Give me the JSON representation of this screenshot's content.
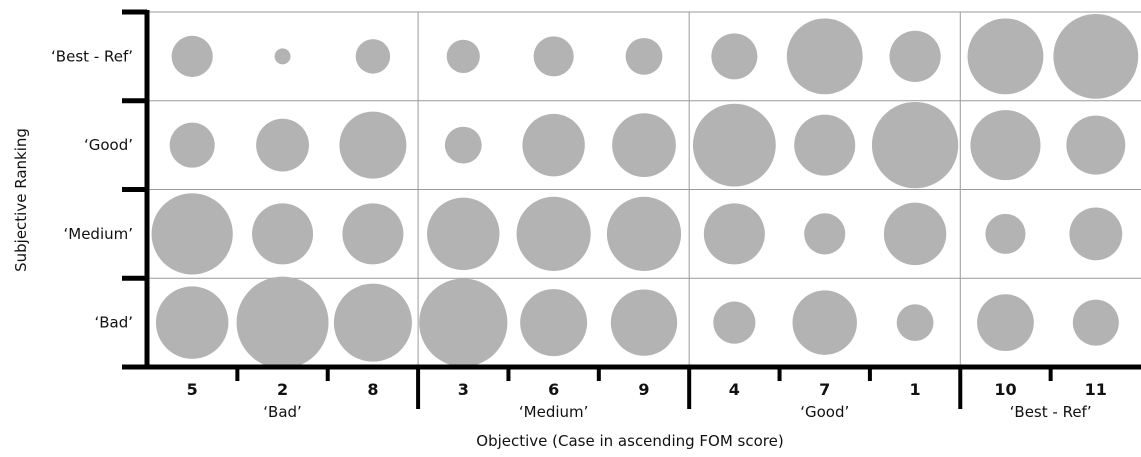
{
  "chart_data": {
    "type": "bubble",
    "xlabel": "Objective (Case in ascending FOM score)",
    "ylabel": "Subjective Ranking",
    "x_cases": [
      "5",
      "2",
      "8",
      "3",
      "6",
      "9",
      "4",
      "7",
      "1",
      "10",
      "11"
    ],
    "x_groups": [
      {
        "label": "‘Bad’",
        "cases": [
          "5",
          "2",
          "8"
        ]
      },
      {
        "label": "‘Medium’",
        "cases": [
          "3",
          "6",
          "9"
        ]
      },
      {
        "label": "‘Good’",
        "cases": [
          "4",
          "7",
          "1"
        ]
      },
      {
        "label": "‘Best - Ref’",
        "cases": [
          "10",
          "11"
        ]
      }
    ],
    "y_categories": [
      "‘Best - Ref’",
      "‘Good’",
      "‘Medium’",
      "‘Bad’"
    ],
    "bubble_size_scale": "relative, max = 1.0",
    "series": [
      {
        "row": "‘Best - Ref’",
        "values": [
          0.2,
          0.03,
          0.14,
          0.13,
          0.19,
          0.16,
          0.25,
          0.68,
          0.31,
          0.68,
          0.85
        ]
      },
      {
        "row": "‘Good’",
        "values": [
          0.24,
          0.33,
          0.53,
          0.16,
          0.46,
          0.48,
          0.81,
          0.44,
          0.88,
          0.58,
          0.41
        ]
      },
      {
        "row": "‘Medium’",
        "values": [
          0.78,
          0.44,
          0.44,
          0.62,
          0.65,
          0.65,
          0.44,
          0.2,
          0.46,
          0.19,
          0.33
        ]
      },
      {
        "row": "‘Bad’",
        "values": [
          0.62,
          1.0,
          0.72,
          0.92,
          0.53,
          0.52,
          0.21,
          0.49,
          0.16,
          0.38,
          0.25
        ]
      }
    ],
    "colors": {
      "bubble": "#b3b3b3",
      "grid": "#9a9a9a",
      "axis": "#000000"
    }
  }
}
